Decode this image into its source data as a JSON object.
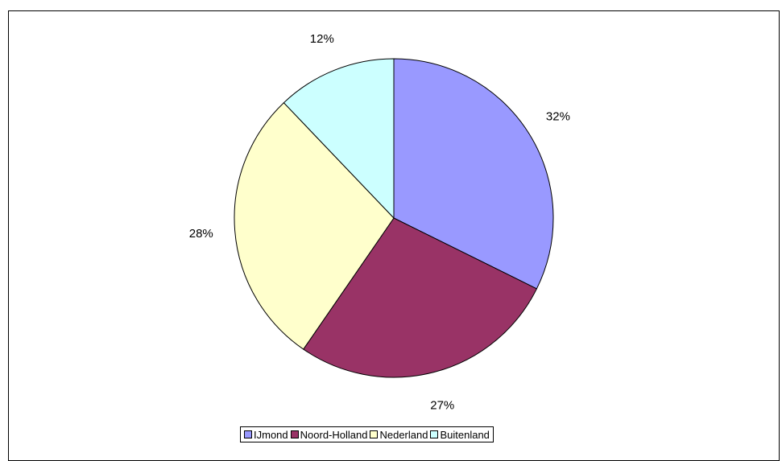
{
  "caption": "",
  "chart_data": {
    "type": "pie",
    "title": "",
    "categories": [
      "IJmond",
      "Noord-Holland",
      "Nederland",
      "Buitenland"
    ],
    "values": [
      32,
      27,
      28,
      12
    ],
    "labels": [
      "32%",
      "27%",
      "28%",
      "12%"
    ],
    "colors": [
      "#9999ff",
      "#993366",
      "#ffffcc",
      "#ccffff"
    ],
    "start": "12 o'clock",
    "direction": "clockwise",
    "legend": "bottom",
    "legend_items": [
      {
        "label": "IJmond",
        "color": "#9999ff"
      },
      {
        "label": "Noord-Holland",
        "color": "#993366"
      },
      {
        "label": "Nederland",
        "color": "#ffffcc"
      },
      {
        "label": "Buitenland",
        "color": "#ccffff"
      }
    ]
  }
}
